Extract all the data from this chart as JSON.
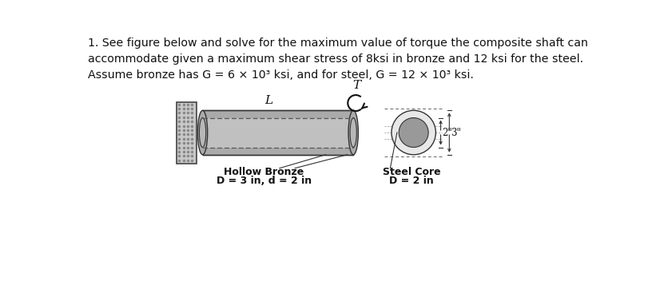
{
  "title_text": "1. See figure below and solve for the maximum value of torque the composite shaft can\naccommodate given a maximum shear stress of 8ksi in bronze and 12 ksi for the steel.\nAssume bronze has G = 6 × 10³ ksi, and for steel, G = 12 × 10³ ksi.",
  "label_L": "L",
  "label_T": "T",
  "label_hollow_bronze": "Hollow Bronze",
  "label_bronze_dims": "D = 3 in, d = 2 in",
  "label_steel_core": "Steel Core",
  "label_steel_dims": "D = 2 in",
  "label_2in": "2\"",
  "label_3in": "3\"",
  "bg_color": "#ffffff",
  "wall_fill": "#c8c8c8",
  "wall_edge": "#444444",
  "bronze_outer_fill": "#aaaaaa",
  "bronze_ring_fill": "#c0c0c0",
  "shaft_fill": "#909090",
  "steel_core_fill": "#888888",
  "steel_center_fill": "#aaaaaa",
  "dashed_color": "#555555",
  "outline_color": "#333333",
  "cs_bg_fill": "#e8e8e8",
  "font_size_title": 10.2,
  "font_size_labels": 9.0,
  "font_size_L": 11,
  "font_size_T": 11,
  "font_size_dims": 8.5
}
